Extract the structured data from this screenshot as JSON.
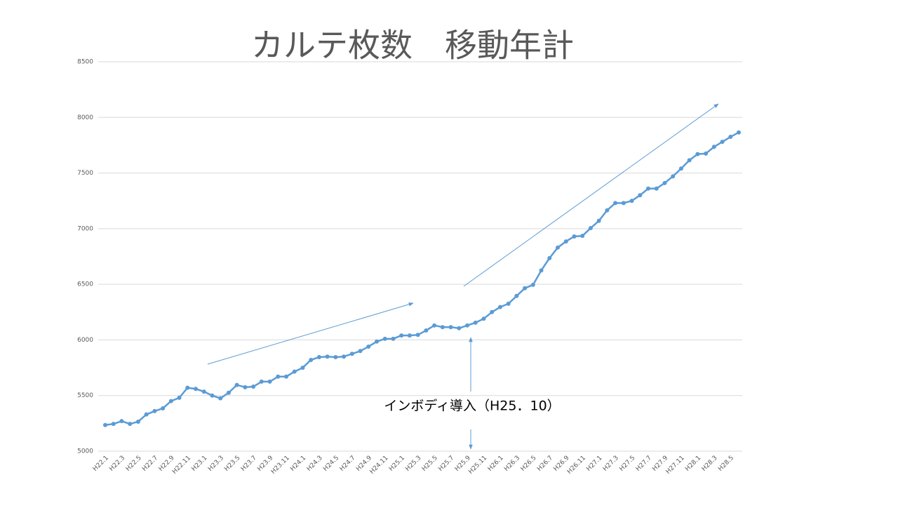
{
  "chart_data": {
    "type": "line",
    "title": "カルテ枚数　移動年計",
    "annotation": "インボディ導入（H25．10）",
    "categories": [
      "H22.1",
      null,
      "H22.3",
      null,
      "H22.5",
      null,
      "H22.7",
      null,
      "H22.9",
      null,
      "H22.11",
      null,
      "H23.1",
      null,
      "H23.3",
      null,
      "H23.5",
      null,
      "H23.7",
      null,
      "H23.9",
      null,
      "H23.11",
      null,
      "H24.1",
      null,
      "H24.3",
      null,
      "H24.5",
      null,
      "H24.7",
      null,
      "H24.9",
      null,
      "H24.11",
      null,
      "H25.1",
      null,
      "H25.3",
      null,
      "H25.5",
      null,
      "H25.7",
      null,
      "H25.9",
      null,
      "H25.11",
      null,
      "H26.1",
      null,
      "H26.3",
      null,
      "H26.5",
      null,
      "H26.7",
      null,
      "H26.9",
      null,
      "H26.11",
      null,
      "H27.1",
      null,
      "H27.3",
      null,
      "H27.5",
      null,
      "H27.7",
      null,
      "H27.9",
      null,
      "H27.11",
      null,
      "H28.1",
      null,
      "H28.3",
      null,
      "H28.5",
      null
    ],
    "series": [
      {
        "name": "カルテ枚数",
        "color": "#5b9bd5",
        "values": [
          5235,
          5245,
          5270,
          5245,
          5265,
          5330,
          5360,
          5385,
          5450,
          5480,
          5570,
          5560,
          5535,
          5500,
          5475,
          5525,
          5595,
          5575,
          5580,
          5625,
          5625,
          5670,
          5670,
          5715,
          5750,
          5820,
          5845,
          5850,
          5845,
          5850,
          5875,
          5900,
          5940,
          5985,
          6010,
          6010,
          6040,
          6040,
          6045,
          6085,
          6130,
          6115,
          6115,
          6105,
          6130,
          6155,
          6190,
          6250,
          6295,
          6325,
          6395,
          6465,
          6495,
          6625,
          6735,
          6830,
          6885,
          6930,
          6935,
          7005,
          7070,
          7165,
          7230,
          7230,
          7250,
          7300,
          7360,
          7360,
          7410,
          7470,
          7540,
          7615,
          7670,
          7675,
          7735,
          7780,
          7825,
          7865
        ]
      }
    ],
    "ylim": [
      5000,
      8500
    ],
    "yticks": [
      5000,
      5500,
      6000,
      6500,
      7000,
      7500,
      8000,
      8500
    ],
    "grid": true
  }
}
